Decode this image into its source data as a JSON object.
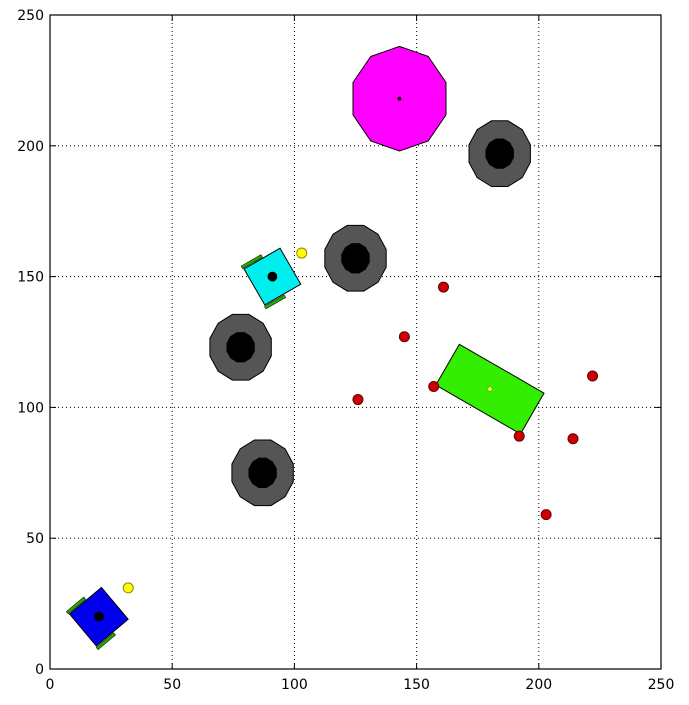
{
  "chart_data": {
    "type": "scatter",
    "title": "",
    "xlabel": "",
    "ylabel": "",
    "xlim": [
      0,
      250
    ],
    "ylim": [
      0,
      250
    ],
    "xticks": [
      0,
      50,
      100,
      150,
      200,
      250
    ],
    "yticks": [
      0,
      50,
      100,
      150,
      200,
      250
    ],
    "xtick_labels": [
      "0",
      "50",
      "100",
      "150",
      "200",
      "250"
    ],
    "ytick_labels": [
      "0",
      "50",
      "100",
      "150",
      "200",
      "250"
    ],
    "grid": true,
    "grid_style": "dotted",
    "colors": {
      "background": "#ffffff",
      "axes": "#000000",
      "grid": "#000000",
      "obstacle_outer": "#555555",
      "obstacle_inner": "#000000",
      "target_octagon": "#ff00ff",
      "green_rect": "#33ee00",
      "blue_robot": "#0000ee",
      "cyan_robot": "#00eeee",
      "red_points": "#cc0000",
      "yellow_points": "#ffff00",
      "wheels": "#22aa00"
    },
    "obstacles": [
      {
        "x": 184,
        "y": 197,
        "outer_radius": 13,
        "inner_radius": 6
      },
      {
        "x": 125,
        "y": 157,
        "outer_radius": 13,
        "inner_radius": 6
      },
      {
        "x": 78,
        "y": 123,
        "outer_radius": 13,
        "inner_radius": 6
      },
      {
        "x": 87,
        "y": 75,
        "outer_radius": 13,
        "inner_radius": 6
      }
    ],
    "target": {
      "x": 143,
      "y": 218,
      "radius": 20,
      "sides": 10,
      "center_dot": 0.8
    },
    "rectangles": [
      {
        "name": "green-block",
        "x": 180,
        "y": 107,
        "width": 40,
        "height": 18,
        "angle_deg": -30,
        "center_dot": 0.9
      }
    ],
    "robots": [
      {
        "name": "blue-robot",
        "x": 20,
        "y": 20,
        "size": 17,
        "angle_deg": 40,
        "center_dot": 2
      },
      {
        "name": "cyan-robot",
        "x": 91,
        "y": 150,
        "size": 17,
        "angle_deg": 30,
        "center_dot": 2
      }
    ],
    "red_points": [
      {
        "x": 161,
        "y": 146
      },
      {
        "x": 145,
        "y": 127
      },
      {
        "x": 157,
        "y": 108
      },
      {
        "x": 126,
        "y": 103
      },
      {
        "x": 192,
        "y": 89
      },
      {
        "x": 214,
        "y": 88
      },
      {
        "x": 222,
        "y": 112
      },
      {
        "x": 203,
        "y": 59
      }
    ],
    "yellow_points": [
      {
        "x": 32,
        "y": 31
      },
      {
        "x": 103,
        "y": 159
      }
    ]
  }
}
